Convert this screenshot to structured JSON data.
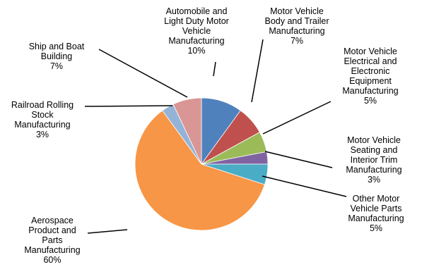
{
  "chart_data": {
    "type": "pie",
    "title": "",
    "slices": [
      {
        "label": [
          "Automobile and",
          "Light Duty Motor",
          "Vehicle",
          "Manufacturing"
        ],
        "value": 10,
        "pct": "10%",
        "color": "#4F81BD"
      },
      {
        "label": [
          "Motor Vehicle",
          "Body and Trailer",
          "Manufacturing"
        ],
        "value": 7,
        "pct": "7%",
        "color": "#C0504D"
      },
      {
        "label": [
          "Motor Vehicle",
          "Electrical and",
          "Electronic",
          "Equipment",
          "Manufacturing"
        ],
        "value": 5,
        "pct": "5%",
        "color": "#9BBB59"
      },
      {
        "label": [
          "Motor Vehicle",
          "Seating and",
          "Interior Trim",
          "Manufacturing"
        ],
        "value": 3,
        "pct": "3%",
        "color": "#8064A2"
      },
      {
        "label": [
          "Other Motor",
          "Vehicle Parts",
          "Manufacturing"
        ],
        "value": 5,
        "pct": "5%",
        "color": "#4BACC6"
      },
      {
        "label": [
          "Aerospace",
          "Product and",
          "Parts",
          "Manufacturing"
        ],
        "value": 60,
        "pct": "60%",
        "color": "#F79646"
      },
      {
        "label": [
          "Railroad Rolling",
          "Stock",
          "Manufacturing"
        ],
        "value": 3,
        "pct": "3%",
        "color": "#95B3D7"
      },
      {
        "label": [
          "Ship and Boat",
          "Building"
        ],
        "value": 7,
        "pct": "7%",
        "color": "#D99694"
      }
    ],
    "start_angle_deg": 0,
    "direction": "clockwise",
    "legend": "none",
    "data_labels": "outside-with-leader-lines"
  }
}
